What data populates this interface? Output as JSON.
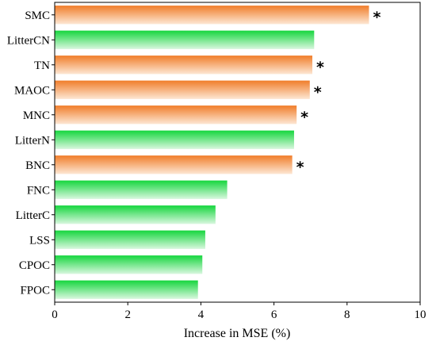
{
  "chart_data": {
    "type": "bar",
    "orientation": "horizontal",
    "title": "",
    "xlabel": "Increase in MSE (%)",
    "ylabel": "",
    "xlim": [
      0,
      10
    ],
    "xticks": [
      "0",
      "2",
      "4",
      "6",
      "8",
      "10"
    ],
    "grid": false,
    "categories": [
      "SMC",
      "LitterCN",
      "TN",
      "MAOC",
      "MNC",
      "LitterN",
      "BNC",
      "FNC",
      "LitterC",
      "LSS",
      "CPOC",
      "FPOC"
    ],
    "values": [
      8.6,
      7.1,
      7.05,
      6.98,
      6.62,
      6.55,
      6.5,
      4.72,
      4.4,
      4.12,
      4.04,
      3.92
    ],
    "significant": [
      true,
      false,
      true,
      true,
      true,
      false,
      true,
      false,
      false,
      false,
      false,
      false
    ],
    "significance_marker": "*",
    "colors": {
      "significant": "#f28c3e",
      "not_significant": "#22d84a"
    }
  }
}
